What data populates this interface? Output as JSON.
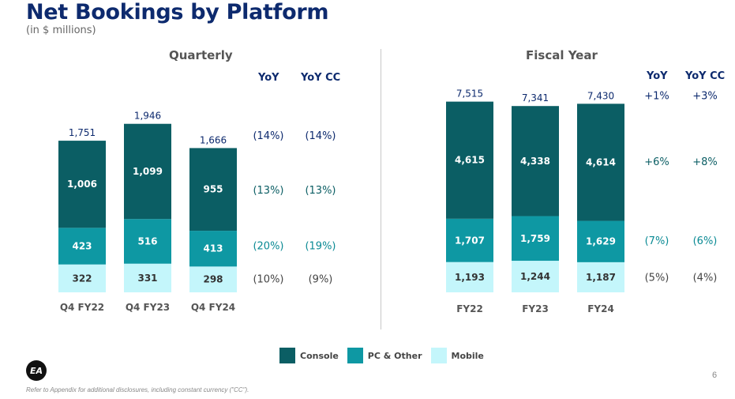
{
  "header": {
    "title": "Net Bookings by Platform",
    "subtitle": "(in $ millions)"
  },
  "colors": {
    "console": "#0b5e64",
    "pc_other": "#0e98a3",
    "mobile": "#c4f6fb",
    "title": "#0d2a6e",
    "yoy_total": "#0d2a6e",
    "yoy_console": "#0b5e64",
    "yoy_pc": "#0a8a94",
    "yoy_mobile": "#444444"
  },
  "legend": {
    "items": [
      {
        "key": "console",
        "label": "Console"
      },
      {
        "key": "pc_other",
        "label": "PC & Other"
      },
      {
        "key": "mobile",
        "label": "Mobile"
      }
    ]
  },
  "chart_data": [
    {
      "type": "bar",
      "stacked": true,
      "title": "Quarterly",
      "categories": [
        "Q4 FY22",
        "Q4 FY23",
        "Q4 FY24"
      ],
      "series": [
        {
          "name": "Mobile",
          "values": [
            322,
            331,
            298
          ]
        },
        {
          "name": "PC & Other",
          "values": [
            423,
            516,
            413
          ]
        },
        {
          "name": "Console",
          "values": [
            1006,
            1099,
            955
          ]
        }
      ],
      "series_labels": [
        [
          "322",
          "331",
          "298"
        ],
        [
          "423",
          "516",
          "413"
        ],
        [
          "1,006",
          "1,099",
          "955"
        ]
      ],
      "totals": [
        "1,751",
        "1,946",
        "1,666"
      ],
      "growth_headers": [
        "YoY",
        "YoY CC"
      ],
      "growth": {
        "total": [
          "(14%)",
          "(14%)"
        ],
        "console": [
          "(13%)",
          "(13%)"
        ],
        "pc_other": [
          "(20%)",
          "(19%)"
        ],
        "mobile": [
          "(10%)",
          "(9%)"
        ]
      }
    },
    {
      "type": "bar",
      "stacked": true,
      "title": "Fiscal Year",
      "categories": [
        "FY22",
        "FY23",
        "FY24"
      ],
      "series": [
        {
          "name": "Mobile",
          "values": [
            1193,
            1244,
            1187
          ]
        },
        {
          "name": "PC & Other",
          "values": [
            1707,
            1759,
            1629
          ]
        },
        {
          "name": "Console",
          "values": [
            4615,
            4338,
            4614
          ]
        }
      ],
      "series_labels": [
        [
          "1,193",
          "1,244",
          "1,187"
        ],
        [
          "1,707",
          "1,759",
          "1,629"
        ],
        [
          "4,615",
          "4,338",
          "4,614"
        ]
      ],
      "totals": [
        "7,515",
        "7,341",
        "7,430"
      ],
      "growth_headers": [
        "YoY",
        "YoY CC"
      ],
      "growth": {
        "total": [
          "+1%",
          "+3%"
        ],
        "console": [
          "+6%",
          "+8%"
        ],
        "pc_other": [
          "(7%)",
          "(6%)"
        ],
        "mobile": [
          "(5%)",
          "(4%)"
        ]
      }
    }
  ],
  "footer": {
    "logo_text": "EA",
    "page_number": "6",
    "note": "Refer to Appendix for additional disclosures, including constant currency (\"CC\")."
  }
}
